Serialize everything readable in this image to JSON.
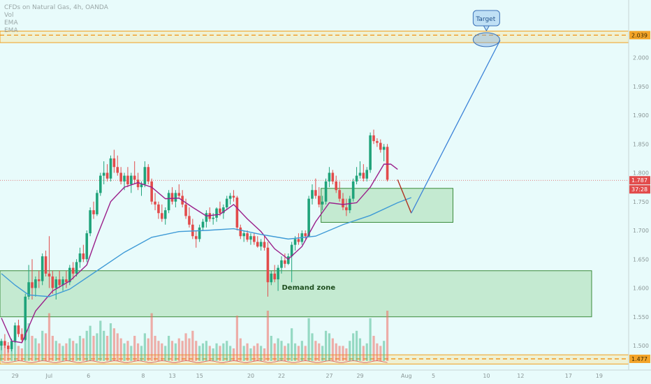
{
  "header": {
    "symbol_line": "CFDs on Natural Gas, 4h, OANDA",
    "indicator_lines": [
      "Vol",
      "EMA",
      "EMA"
    ]
  },
  "chart_data": {
    "type": "candlestick",
    "symbol": "CFDs on Natural Gas, 4h, OANDA",
    "ylim": [
      1.46,
      2.1
    ],
    "y_ticks": [
      {
        "v": 2.0,
        "label": "2.000"
      },
      {
        "v": 1.95,
        "label": "1.950"
      },
      {
        "v": 1.9,
        "label": "1.900"
      },
      {
        "v": 1.85,
        "label": "1.850"
      },
      {
        "v": 1.8,
        "label": "1.800"
      },
      {
        "v": 1.75,
        "label": "1.750"
      },
      {
        "v": 1.7,
        "label": "1.700"
      },
      {
        "v": 1.65,
        "label": "1.650"
      },
      {
        "v": 1.6,
        "label": "1.600"
      },
      {
        "v": 1.55,
        "label": "1.550"
      },
      {
        "v": 1.5,
        "label": "1.500"
      }
    ],
    "x_ticks": [
      {
        "i": 4,
        "label": "29"
      },
      {
        "i": 14,
        "label": "Jul"
      },
      {
        "i": 26,
        "label": "6"
      },
      {
        "i": 42,
        "label": "8"
      },
      {
        "i": 50,
        "label": "13"
      },
      {
        "i": 58,
        "label": "15"
      },
      {
        "i": 73,
        "label": "20"
      },
      {
        "i": 82,
        "label": "22"
      },
      {
        "i": 96,
        "label": "27"
      },
      {
        "i": 105,
        "label": "29"
      },
      {
        "i": 118,
        "label": "Aug"
      },
      {
        "i": 127,
        "label": "5"
      },
      {
        "i": 142,
        "label": "10"
      },
      {
        "i": 152,
        "label": "12"
      },
      {
        "i": 166,
        "label": "17"
      },
      {
        "i": 175,
        "label": "19"
      }
    ],
    "x_count": 182,
    "candles": [
      [
        1.5,
        1.512,
        1.492,
        1.508
      ],
      [
        1.508,
        1.52,
        1.496,
        1.5
      ],
      [
        1.5,
        1.506,
        1.488,
        1.494
      ],
      [
        1.494,
        1.512,
        1.49,
        1.508
      ],
      [
        1.508,
        1.54,
        1.505,
        1.535
      ],
      [
        1.535,
        1.545,
        1.515,
        1.52
      ],
      [
        1.52,
        1.53,
        1.505,
        1.51
      ],
      [
        1.51,
        1.59,
        1.508,
        1.585
      ],
      [
        1.585,
        1.64,
        1.58,
        1.61
      ],
      [
        1.61,
        1.65,
        1.58,
        1.6
      ],
      [
        1.6,
        1.62,
        1.585,
        1.615
      ],
      [
        1.615,
        1.63,
        1.6,
        1.612
      ],
      [
        1.612,
        1.66,
        1.605,
        1.655
      ],
      [
        1.655,
        1.665,
        1.62,
        1.625
      ],
      [
        1.625,
        1.69,
        1.6,
        1.62
      ],
      [
        1.62,
        1.63,
        1.59,
        1.6
      ],
      [
        1.6,
        1.62,
        1.58,
        1.615
      ],
      [
        1.615,
        1.63,
        1.6,
        1.605
      ],
      [
        1.605,
        1.62,
        1.595,
        1.615
      ],
      [
        1.615,
        1.63,
        1.6,
        1.61
      ],
      [
        1.61,
        1.64,
        1.605,
        1.635
      ],
      [
        1.635,
        1.645,
        1.615,
        1.625
      ],
      [
        1.625,
        1.65,
        1.62,
        1.645
      ],
      [
        1.645,
        1.67,
        1.635,
        1.66
      ],
      [
        1.66,
        1.675,
        1.645,
        1.65
      ],
      [
        1.65,
        1.7,
        1.645,
        1.695
      ],
      [
        1.695,
        1.74,
        1.69,
        1.735
      ],
      [
        1.735,
        1.75,
        1.72,
        1.728
      ],
      [
        1.728,
        1.77,
        1.725,
        1.765
      ],
      [
        1.765,
        1.8,
        1.76,
        1.795
      ],
      [
        1.795,
        1.82,
        1.78,
        1.8
      ],
      [
        1.8,
        1.815,
        1.785,
        1.79
      ],
      [
        1.79,
        1.83,
        1.785,
        1.825
      ],
      [
        1.825,
        1.84,
        1.8,
        1.81
      ],
      [
        1.81,
        1.83,
        1.795,
        1.8
      ],
      [
        1.8,
        1.81,
        1.78,
        1.785
      ],
      [
        1.785,
        1.8,
        1.77,
        1.795
      ],
      [
        1.795,
        1.81,
        1.775,
        1.78
      ],
      [
        1.78,
        1.8,
        1.765,
        1.795
      ],
      [
        1.795,
        1.82,
        1.78,
        1.788
      ],
      [
        1.788,
        1.8,
        1.77,
        1.775
      ],
      [
        1.775,
        1.785,
        1.76,
        1.78
      ],
      [
        1.78,
        1.82,
        1.775,
        1.81
      ],
      [
        1.81,
        1.815,
        1.78,
        1.785
      ],
      [
        1.785,
        1.79,
        1.745,
        1.75
      ],
      [
        1.75,
        1.765,
        1.735,
        1.745
      ],
      [
        1.745,
        1.75,
        1.72,
        1.73
      ],
      [
        1.73,
        1.745,
        1.715,
        1.72
      ],
      [
        1.72,
        1.74,
        1.71,
        1.735
      ],
      [
        1.735,
        1.77,
        1.73,
        1.765
      ],
      [
        1.765,
        1.775,
        1.745,
        1.75
      ],
      [
        1.75,
        1.77,
        1.74,
        1.765
      ],
      [
        1.765,
        1.78,
        1.755,
        1.76
      ],
      [
        1.76,
        1.77,
        1.74,
        1.745
      ],
      [
        1.745,
        1.755,
        1.72,
        1.725
      ],
      [
        1.725,
        1.74,
        1.705,
        1.71
      ],
      [
        1.71,
        1.72,
        1.685,
        1.69
      ],
      [
        1.69,
        1.7,
        1.67,
        1.685
      ],
      [
        1.685,
        1.71,
        1.68,
        1.705
      ],
      [
        1.705,
        1.72,
        1.7,
        1.715
      ],
      [
        1.715,
        1.735,
        1.705,
        1.73
      ],
      [
        1.73,
        1.74,
        1.715,
        1.72
      ],
      [
        1.72,
        1.73,
        1.71,
        1.722
      ],
      [
        1.722,
        1.74,
        1.715,
        1.738
      ],
      [
        1.738,
        1.75,
        1.725,
        1.73
      ],
      [
        1.73,
        1.745,
        1.72,
        1.74
      ],
      [
        1.74,
        1.76,
        1.735,
        1.755
      ],
      [
        1.755,
        1.765,
        1.745,
        1.76
      ],
      [
        1.76,
        1.77,
        1.75,
        1.757
      ],
      [
        1.757,
        1.76,
        1.7,
        1.705
      ],
      [
        1.705,
        1.71,
        1.685,
        1.69
      ],
      [
        1.69,
        1.7,
        1.68,
        1.695
      ],
      [
        1.695,
        1.7,
        1.68,
        1.684
      ],
      [
        1.684,
        1.695,
        1.675,
        1.69
      ],
      [
        1.69,
        1.695,
        1.675,
        1.68
      ],
      [
        1.68,
        1.69,
        1.67,
        1.672
      ],
      [
        1.672,
        1.685,
        1.665,
        1.68
      ],
      [
        1.68,
        1.69,
        1.665,
        1.67
      ],
      [
        1.67,
        1.68,
        1.585,
        1.61
      ],
      [
        1.61,
        1.63,
        1.605,
        1.625
      ],
      [
        1.625,
        1.64,
        1.61,
        1.615
      ],
      [
        1.615,
        1.64,
        1.595,
        1.635
      ],
      [
        1.635,
        1.655,
        1.625,
        1.648
      ],
      [
        1.648,
        1.66,
        1.635,
        1.642
      ],
      [
        1.642,
        1.66,
        1.64,
        1.655
      ],
      [
        1.655,
        1.68,
        1.61,
        1.675
      ],
      [
        1.675,
        1.69,
        1.665,
        1.685
      ],
      [
        1.685,
        1.695,
        1.675,
        1.68
      ],
      [
        1.68,
        1.7,
        1.675,
        1.695
      ],
      [
        1.695,
        1.7,
        1.685,
        1.69
      ],
      [
        1.69,
        1.76,
        1.688,
        1.755
      ],
      [
        1.755,
        1.78,
        1.745,
        1.77
      ],
      [
        1.77,
        1.79,
        1.755,
        1.76
      ],
      [
        1.76,
        1.775,
        1.74,
        1.745
      ],
      [
        1.745,
        1.76,
        1.735,
        1.75
      ],
      [
        1.75,
        1.79,
        1.745,
        1.785
      ],
      [
        1.785,
        1.81,
        1.775,
        1.8
      ],
      [
        1.8,
        1.805,
        1.78,
        1.785
      ],
      [
        1.785,
        1.795,
        1.765,
        1.77
      ],
      [
        1.77,
        1.785,
        1.75,
        1.755
      ],
      [
        1.755,
        1.765,
        1.735,
        1.74
      ],
      [
        1.74,
        1.755,
        1.725,
        1.735
      ],
      [
        1.735,
        1.76,
        1.73,
        1.755
      ],
      [
        1.755,
        1.79,
        1.75,
        1.785
      ],
      [
        1.785,
        1.81,
        1.78,
        1.795
      ],
      [
        1.795,
        1.82,
        1.79,
        1.8
      ],
      [
        1.8,
        1.815,
        1.785,
        1.79
      ],
      [
        1.79,
        1.81,
        1.785,
        1.805
      ],
      [
        1.805,
        1.87,
        1.8,
        1.865
      ],
      [
        1.865,
        1.875,
        1.85,
        1.855
      ],
      [
        1.855,
        1.86,
        1.845,
        1.852
      ],
      [
        1.852,
        1.858,
        1.835,
        1.84
      ],
      [
        1.84,
        1.85,
        1.82,
        1.845
      ],
      [
        1.845,
        1.85,
        1.785,
        1.788
      ]
    ],
    "volume": [
      0.35,
      0.3,
      0.25,
      0.4,
      0.55,
      0.3,
      0.25,
      0.9,
      0.75,
      0.5,
      0.45,
      0.35,
      0.6,
      0.55,
      0.95,
      0.5,
      0.4,
      0.35,
      0.3,
      0.35,
      0.45,
      0.4,
      0.35,
      0.5,
      0.45,
      0.6,
      0.7,
      0.5,
      0.55,
      0.8,
      0.6,
      0.5,
      0.75,
      0.65,
      0.55,
      0.45,
      0.35,
      0.4,
      0.3,
      0.5,
      0.35,
      0.3,
      0.55,
      0.45,
      0.95,
      0.5,
      0.4,
      0.35,
      0.3,
      0.5,
      0.4,
      0.35,
      0.45,
      0.4,
      0.55,
      0.45,
      0.6,
      0.4,
      0.3,
      0.35,
      0.4,
      0.3,
      0.25,
      0.35,
      0.3,
      0.35,
      0.4,
      0.3,
      0.25,
      0.9,
      0.45,
      0.3,
      0.35,
      0.25,
      0.3,
      0.35,
      0.3,
      0.25,
      1.0,
      0.5,
      0.35,
      0.45,
      0.4,
      0.3,
      0.35,
      0.65,
      0.35,
      0.3,
      0.4,
      0.3,
      0.85,
      0.55,
      0.4,
      0.35,
      0.3,
      0.6,
      0.55,
      0.45,
      0.35,
      0.3,
      0.3,
      0.25,
      0.4,
      0.55,
      0.6,
      0.45,
      0.3,
      0.35,
      0.85,
      0.5,
      0.35,
      0.3,
      0.4,
      1.0
    ],
    "ema_fast": [
      [
        0,
        1.548
      ],
      [
        3,
        1.508
      ],
      [
        6,
        1.505
      ],
      [
        10,
        1.56
      ],
      [
        15,
        1.595
      ],
      [
        20,
        1.612
      ],
      [
        25,
        1.64
      ],
      [
        28,
        1.69
      ],
      [
        32,
        1.75
      ],
      [
        36,
        1.775
      ],
      [
        40,
        1.783
      ],
      [
        44,
        1.775
      ],
      [
        48,
        1.755
      ],
      [
        52,
        1.756
      ],
      [
        56,
        1.74
      ],
      [
        60,
        1.725
      ],
      [
        64,
        1.728
      ],
      [
        68,
        1.745
      ],
      [
        72,
        1.72
      ],
      [
        76,
        1.698
      ],
      [
        80,
        1.668
      ],
      [
        84,
        1.65
      ],
      [
        88,
        1.672
      ],
      [
        92,
        1.715
      ],
      [
        96,
        1.748
      ],
      [
        100,
        1.745
      ],
      [
        104,
        1.748
      ],
      [
        108,
        1.775
      ],
      [
        112,
        1.815
      ],
      [
        114,
        1.815
      ],
      [
        116,
        1.806
      ]
    ],
    "ema_slow": [
      [
        0,
        1.625
      ],
      [
        4,
        1.605
      ],
      [
        8,
        1.588
      ],
      [
        14,
        1.585
      ],
      [
        20,
        1.598
      ],
      [
        28,
        1.63
      ],
      [
        36,
        1.662
      ],
      [
        44,
        1.688
      ],
      [
        52,
        1.698
      ],
      [
        60,
        1.7
      ],
      [
        68,
        1.703
      ],
      [
        76,
        1.693
      ],
      [
        84,
        1.685
      ],
      [
        92,
        1.69
      ],
      [
        100,
        1.71
      ],
      [
        108,
        1.726
      ],
      [
        116,
        1.748
      ],
      [
        120,
        1.757
      ]
    ],
    "zones": [
      {
        "name": "Demand zone",
        "label": "Demand zone",
        "from": 0,
        "to": 171,
        "top": 1.63,
        "bottom": 1.55
      },
      {
        "name": "retest-zone",
        "label": "",
        "from": 94,
        "to": 132,
        "top": 1.773,
        "bottom": 1.714
      }
    ],
    "resistance": {
      "value": 2.039,
      "band": [
        2.046,
        2.026
      ],
      "label": "2.039"
    },
    "support": {
      "value": 1.477,
      "band": [
        1.484,
        1.468
      ],
      "label": "1.477"
    },
    "current_price": {
      "value": 1.787,
      "label": "1.787",
      "countdown": "37:28"
    },
    "projection": {
      "points": [
        [
          116,
          1.788
        ],
        [
          118,
          1.765
        ],
        [
          120,
          1.73
        ],
        [
          146,
          2.03
        ]
      ]
    },
    "target": {
      "label": "Target",
      "x": 142,
      "y": 2.031
    }
  }
}
